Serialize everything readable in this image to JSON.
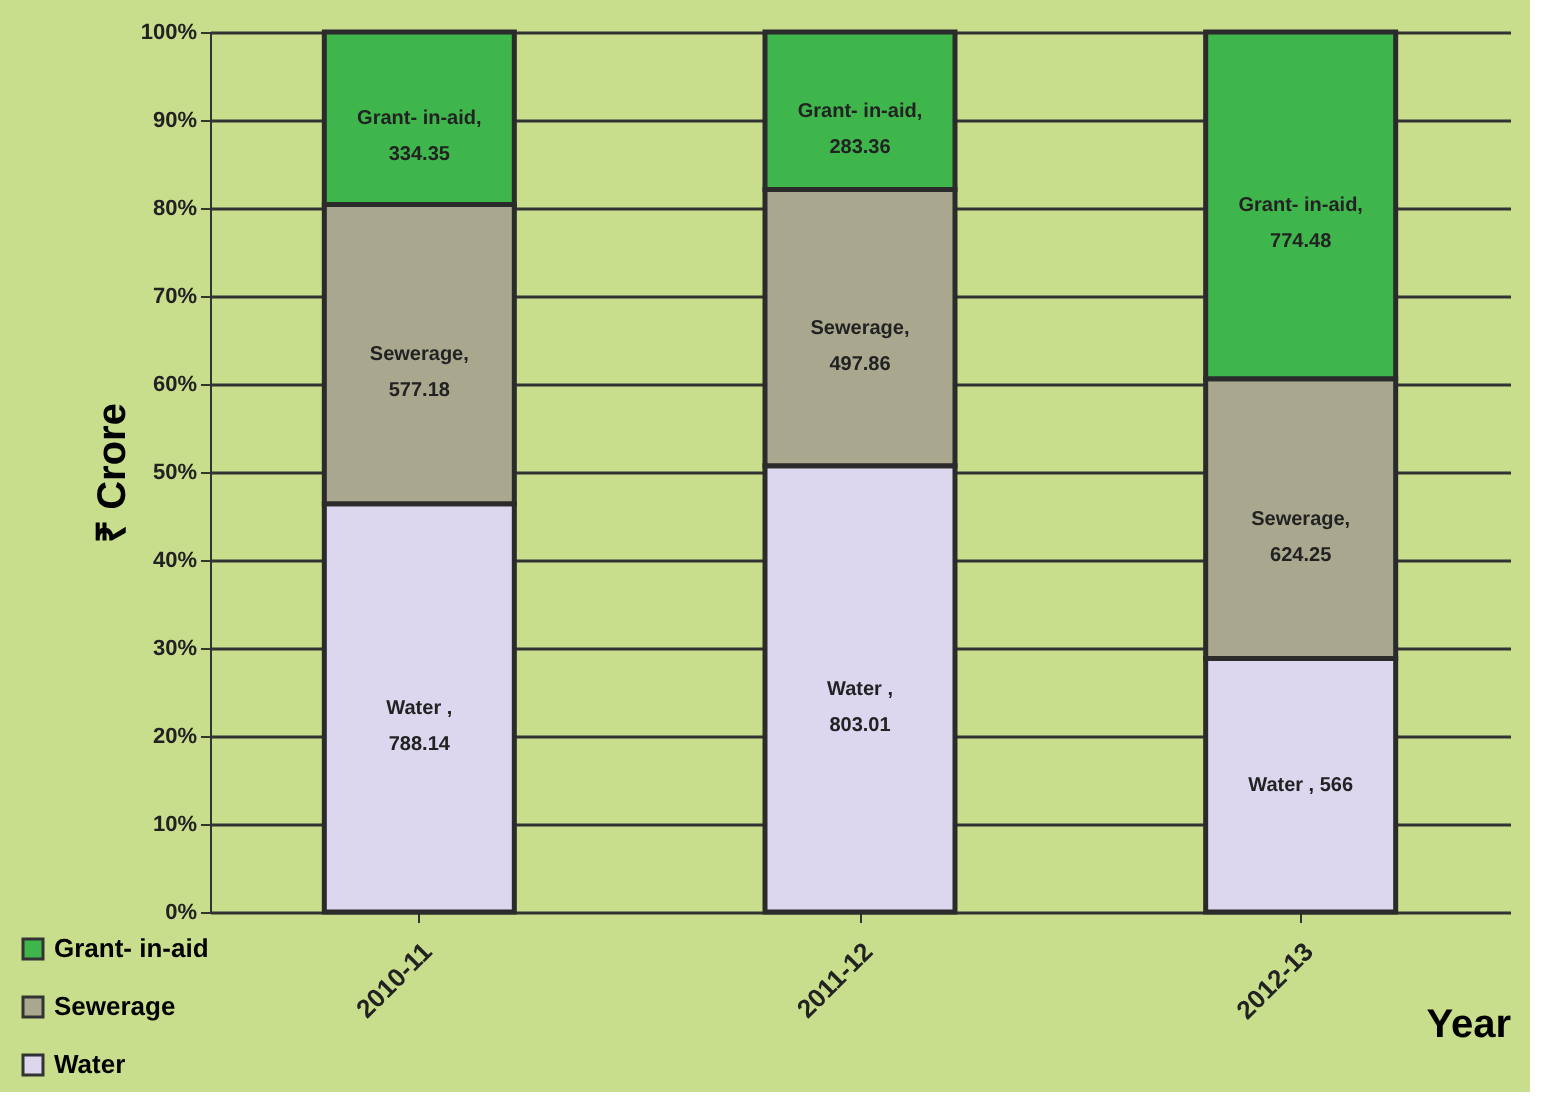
{
  "chart_data": {
    "type": "bar",
    "stacked": true,
    "xlabel": "Year",
    "ylabel": "₹ Crore",
    "categories": [
      "2010-11",
      "2011-12",
      "2012-13"
    ],
    "series": [
      {
        "name": "Water",
        "color": "#dcd6ee",
        "values": [
          46.4,
          50.7,
          28.8
        ]
      },
      {
        "name": "Sewerage",
        "color": "#a9a88f",
        "values": [
          34.0,
          31.4,
          31.8
        ]
      },
      {
        "name": "Grant- in-aid",
        "color": "#3fb64c",
        "values": [
          19.6,
          17.9,
          39.4
        ]
      }
    ],
    "annotations": [
      "Water ,\n788.14",
      "Water ,\n803.01",
      "Water , 566",
      "Sewerage,\n577.18",
      "Sewerage,\n497.86",
      "Sewerage,\n624.25",
      "Grant- in-aid,\n334.35",
      "Grant- in-aid,\n283.36",
      "Grant- in-aid,\n774.48"
    ],
    "ylim": [
      0,
      100
    ],
    "yticks": [
      {
        "value": 0,
        "label": "0%"
      },
      {
        "value": 10,
        "label": "10%"
      },
      {
        "value": 20,
        "label": "20%"
      },
      {
        "value": 30,
        "label": "30%"
      },
      {
        "value": 40,
        "label": "40%"
      },
      {
        "value": 50,
        "label": "50%"
      },
      {
        "value": 60,
        "label": "60%"
      },
      {
        "value": 70,
        "label": "70%"
      },
      {
        "value": 80,
        "label": "80%"
      },
      {
        "value": 90,
        "label": "90%"
      },
      {
        "value": 100,
        "label": "100%"
      }
    ],
    "grid": "y",
    "legend": "bottom left"
  }
}
